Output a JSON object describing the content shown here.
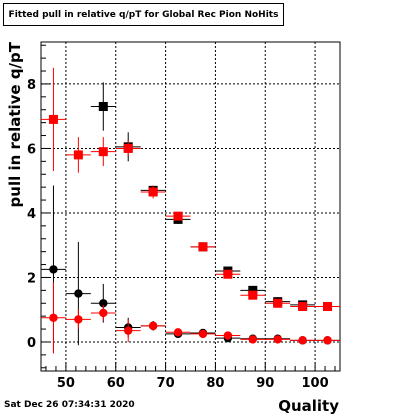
{
  "title": "Fitted pull in relative q/pT for Global Rec Pion NoHits",
  "timestamp": "Sat Dec 26 07:34:31 2020",
  "chart_data": {
    "type": "scatter",
    "title": "Fitted pull in relative q/pT for Global Rec Pion NoHits",
    "xlabel": "Quality",
    "ylabel": "pull in relative q/pT",
    "xlim": [
      45,
      105
    ],
    "ylim": [
      -0.9,
      9.3
    ],
    "x_ticks": [
      50,
      60,
      70,
      80,
      90,
      100
    ],
    "y_ticks": [
      0,
      2,
      4,
      6,
      8
    ],
    "grid": true,
    "x_bin_halfwidth": 2.5,
    "series": [
      {
        "color": "#000000",
        "marker": "square",
        "x": [
          57.5,
          62.5,
          67.5,
          72.5,
          77.5,
          82.5,
          87.5,
          92.5,
          97.5,
          102.5
        ],
        "y": [
          7.3,
          6.05,
          4.7,
          3.8,
          2.95,
          2.2,
          1.6,
          1.25,
          1.15,
          1.1
        ],
        "err": [
          0.75,
          0.45,
          0.15,
          0.1,
          0.08,
          0.08,
          0.06,
          0.05,
          0.05,
          0.05
        ]
      },
      {
        "color": "#ff0000",
        "marker": "square",
        "x": [
          47.5,
          52.5,
          57.5,
          62.5,
          67.5,
          72.5,
          77.5,
          82.5,
          87.5,
          92.5,
          97.5,
          102.5
        ],
        "y": [
          6.9,
          5.8,
          5.9,
          6.0,
          4.65,
          3.9,
          2.95,
          2.1,
          1.45,
          1.2,
          1.1,
          1.1
        ],
        "err": [
          1.6,
          0.55,
          0.45,
          0.25,
          0.2,
          0.12,
          0.1,
          0.08,
          0.07,
          0.05,
          0.05,
          0.05
        ]
      },
      {
        "color": "#000000",
        "marker": "circle",
        "x": [
          47.5,
          52.5,
          57.5,
          62.5,
          67.5,
          72.5,
          77.5,
          82.5,
          87.5,
          92.5,
          97.5,
          102.5
        ],
        "y": [
          2.25,
          1.5,
          1.2,
          0.45,
          0.5,
          0.25,
          0.28,
          0.12,
          0.1,
          0.1,
          0.05,
          0.05
        ],
        "err": [
          2.6,
          1.6,
          0.6,
          0.3,
          0.15,
          0.08,
          0.06,
          0.05,
          0.04,
          0.03,
          0.03,
          0.03
        ]
      },
      {
        "color": "#ff0000",
        "marker": "circle",
        "x": [
          47.5,
          52.5,
          57.5,
          62.5,
          67.5,
          72.5,
          77.5,
          82.5,
          87.5,
          92.5,
          97.5,
          102.5
        ],
        "y": [
          0.75,
          0.7,
          0.9,
          0.35,
          0.5,
          0.3,
          0.25,
          0.2,
          0.08,
          0.08,
          0.05,
          0.05
        ],
        "err": [
          1.1,
          0.3,
          0.25,
          0.35,
          0.12,
          0.07,
          0.06,
          0.05,
          0.04,
          0.03,
          0.03,
          0.03
        ]
      }
    ]
  }
}
